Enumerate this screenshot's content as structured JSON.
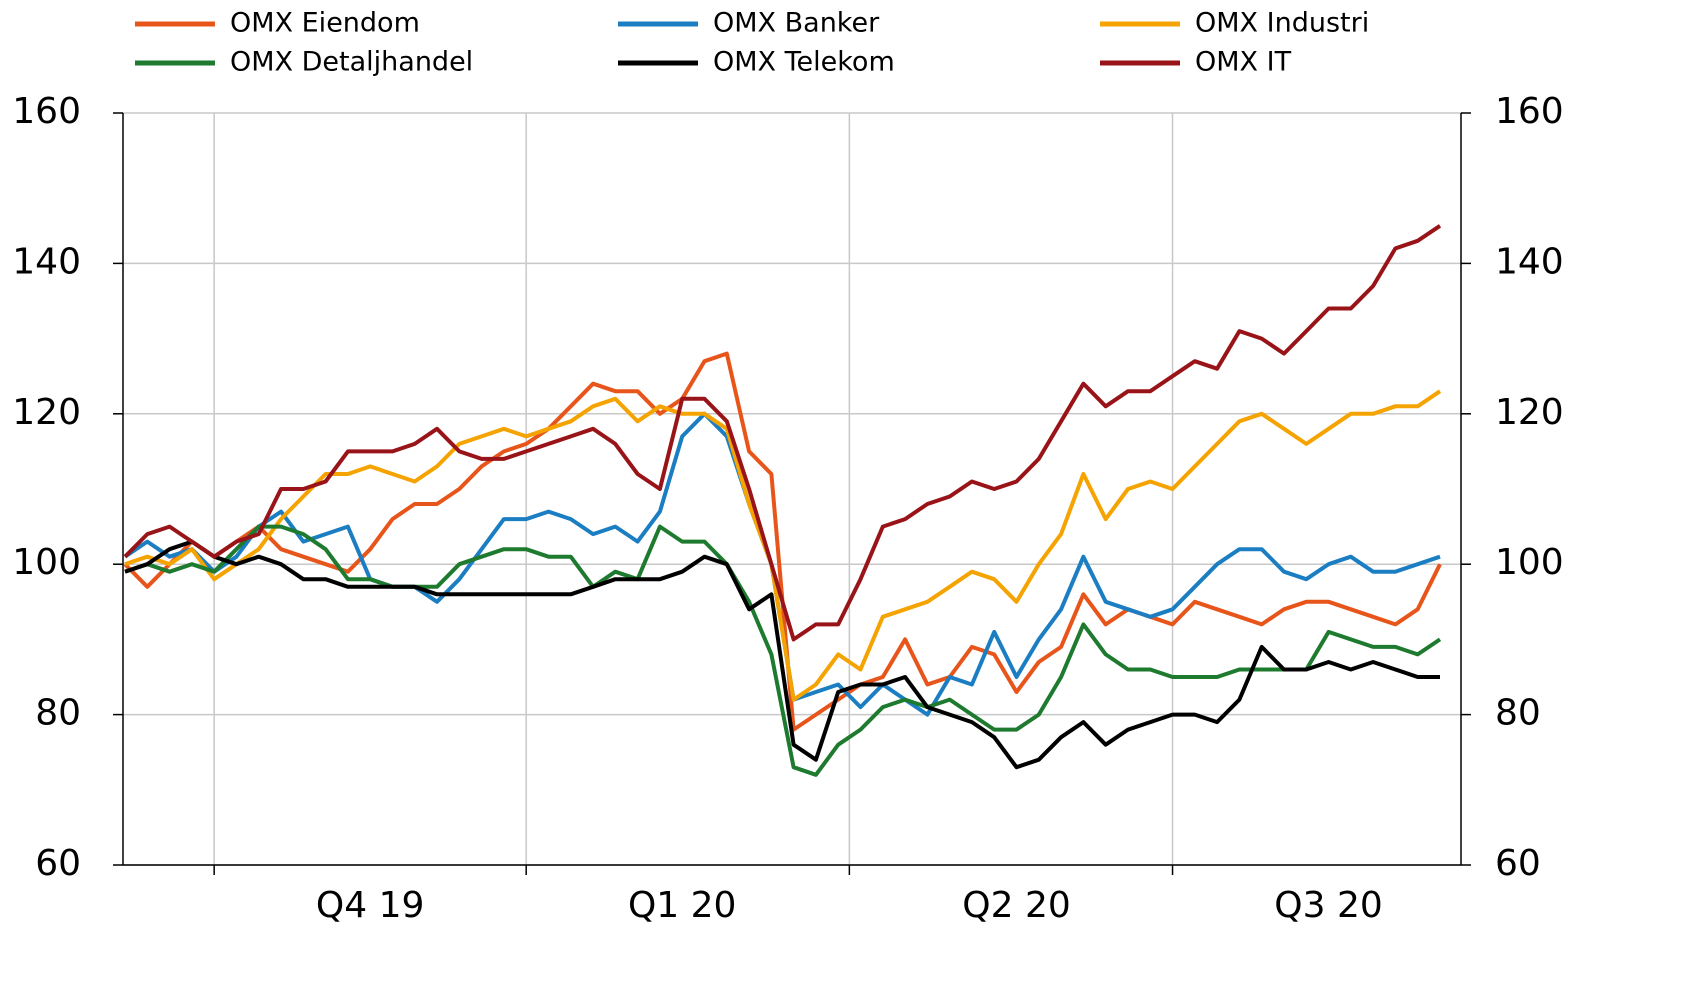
{
  "chart_data": {
    "type": "line",
    "categories": [
      null,
      null,
      null,
      null,
      null,
      null,
      null,
      null,
      null,
      null,
      null,
      "Q4 19",
      null,
      null,
      null,
      null,
      null,
      null,
      null,
      null,
      null,
      null,
      null,
      null,
      null,
      "Q1 20",
      null,
      null,
      null,
      null,
      null,
      null,
      null,
      null,
      null,
      null,
      null,
      null,
      null,
      null,
      "Q2 20",
      null,
      null,
      null,
      null,
      null,
      null,
      null,
      null,
      null,
      null,
      null,
      null,
      null,
      "Q3 20",
      null,
      null,
      null,
      null,
      null
    ],
    "series": [
      {
        "name": "OMX Eiendom",
        "color": "#e8551b",
        "values": [
          100,
          97,
          100,
          103,
          101,
          103,
          105,
          102,
          101,
          100,
          99,
          102,
          106,
          108,
          108,
          110,
          113,
          115,
          116,
          118,
          121,
          124,
          123,
          123,
          120,
          122,
          127,
          128,
          115,
          112,
          78,
          80,
          82,
          84,
          85,
          90,
          84,
          85,
          89,
          88,
          83,
          87,
          89,
          96,
          92,
          94,
          93,
          92,
          95,
          94,
          93,
          92,
          94,
          95,
          95,
          94,
          93,
          92,
          94,
          100
        ]
      },
      {
        "name": "OMX Banker",
        "color": "#1b7ec2",
        "values": [
          101,
          103,
          101,
          102,
          99,
          101,
          105,
          107,
          103,
          104,
          105,
          98,
          97,
          97,
          95,
          98,
          102,
          106,
          106,
          107,
          106,
          104,
          105,
          103,
          107,
          117,
          120,
          117,
          108,
          100,
          82,
          83,
          84,
          81,
          84,
          82,
          80,
          85,
          84,
          91,
          85,
          90,
          94,
          101,
          95,
          94,
          93,
          94,
          97,
          100,
          102,
          102,
          99,
          98,
          100,
          101,
          99,
          99,
          100,
          101
        ]
      },
      {
        "name": "OMX Industri",
        "color": "#f5a300",
        "values": [
          100,
          101,
          100,
          102,
          98,
          100,
          102,
          106,
          109,
          112,
          112,
          113,
          112,
          111,
          113,
          116,
          117,
          118,
          117,
          118,
          119,
          121,
          122,
          119,
          121,
          120,
          120,
          118,
          108,
          100,
          82,
          84,
          88,
          86,
          93,
          94,
          95,
          97,
          99,
          98,
          95,
          100,
          104,
          112,
          106,
          110,
          111,
          110,
          113,
          116,
          119,
          120,
          118,
          116,
          118,
          120,
          120,
          121,
          121,
          123
        ]
      },
      {
        "name": "OMX Detaljhandel",
        "color": "#1e7a2e",
        "values": [
          99,
          100,
          99,
          100,
          99,
          102,
          105,
          105,
          104,
          102,
          98,
          98,
          97,
          97,
          97,
          100,
          101,
          102,
          102,
          101,
          101,
          97,
          99,
          98,
          105,
          103,
          103,
          100,
          95,
          88,
          73,
          72,
          76,
          78,
          81,
          82,
          81,
          82,
          80,
          78,
          78,
          80,
          85,
          92,
          88,
          86,
          86,
          85,
          85,
          85,
          86,
          86,
          86,
          86,
          91,
          90,
          89,
          89,
          88,
          90
        ]
      },
      {
        "name": "OMX Telekom",
        "color": "#000000",
        "values": [
          99,
          100,
          102,
          103,
          101,
          100,
          101,
          100,
          98,
          98,
          97,
          97,
          97,
          97,
          96,
          96,
          96,
          96,
          96,
          96,
          96,
          97,
          98,
          98,
          98,
          99,
          101,
          100,
          94,
          96,
          76,
          74,
          83,
          84,
          84,
          85,
          81,
          80,
          79,
          77,
          73,
          74,
          77,
          79,
          76,
          78,
          79,
          80,
          80,
          79,
          82,
          89,
          86,
          86,
          87,
          86,
          87,
          86,
          85,
          85
        ]
      },
      {
        "name": "OMX IT",
        "color": "#991418",
        "values": [
          101,
          104,
          105,
          103,
          101,
          103,
          104,
          110,
          110,
          111,
          115,
          115,
          115,
          116,
          118,
          115,
          114,
          114,
          115,
          116,
          117,
          118,
          116,
          112,
          110,
          122,
          122,
          119,
          110,
          100,
          90,
          92,
          92,
          98,
          105,
          106,
          108,
          109,
          111,
          110,
          111,
          114,
          119,
          124,
          121,
          123,
          123,
          125,
          127,
          126,
          131,
          130,
          128,
          131,
          134,
          134,
          137,
          142,
          143,
          145
        ]
      }
    ],
    "ylim": [
      60,
      160
    ],
    "yticks": [
      60,
      80,
      100,
      120,
      140,
      160
    ],
    "y2lim": [
      60,
      160
    ],
    "y2ticks": [
      60,
      80,
      100,
      120,
      140,
      160
    ],
    "grid": true,
    "legend": "top"
  }
}
